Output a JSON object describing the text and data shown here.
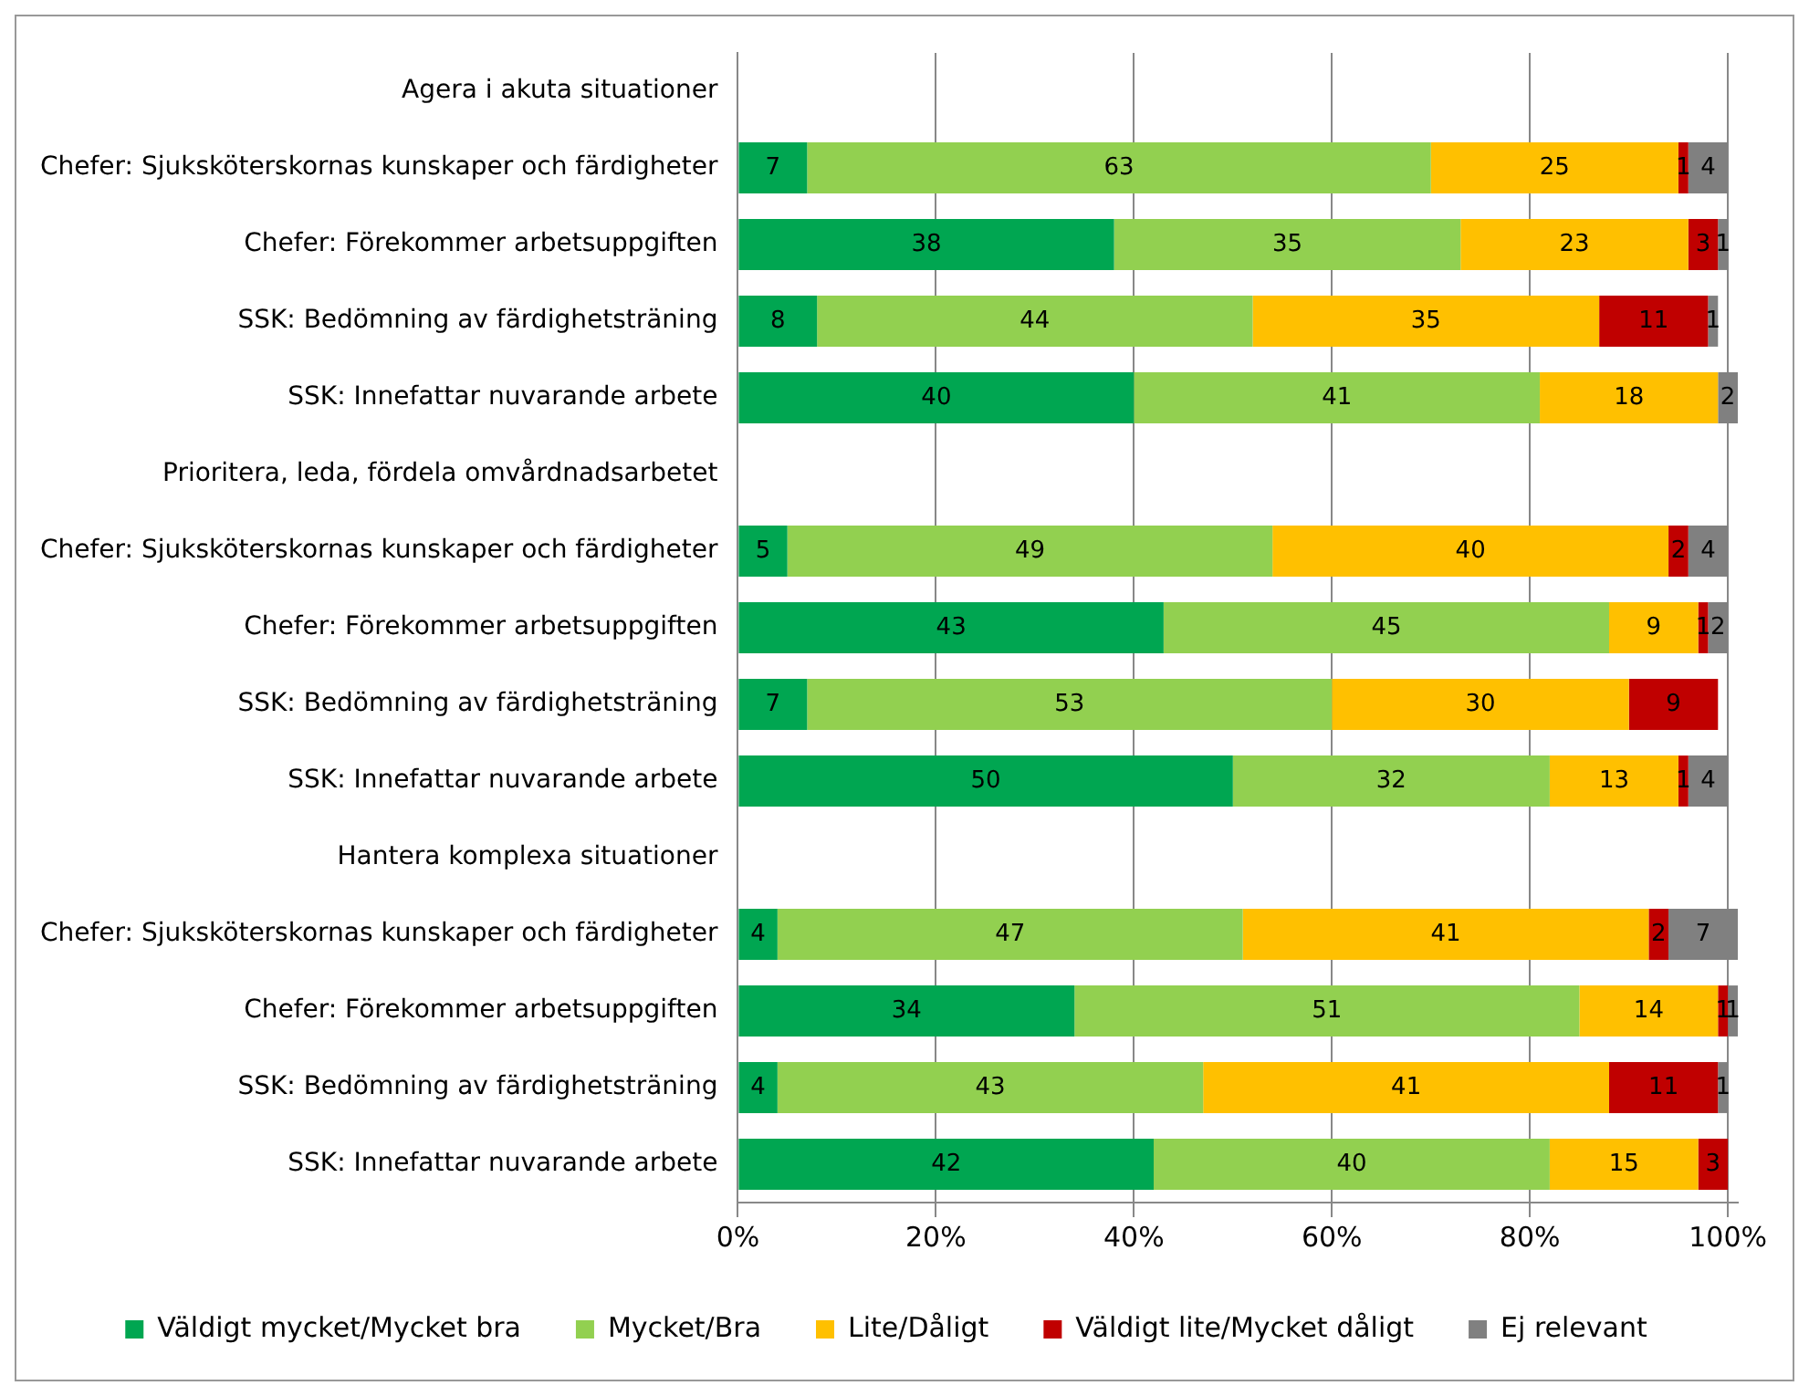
{
  "chart_data": {
    "type": "bar",
    "orientation": "horizontal",
    "stacked": true,
    "data_labels": true,
    "grid": "x",
    "legend": "bottom",
    "categories": [
      "Agera i akuta situationer",
      "Chefer: Sjuksköterskornas kunskaper och färdigheter",
      "Chefer: Förekommer arbetsuppgiften",
      "SSK: Bedömning av färdighetsträning",
      "SSK: Innefattar nuvarande arbete",
      "Prioritera, leda, fördela omvårdnadsarbetet",
      "Chefer: Sjuksköterskornas kunskaper och färdigheter",
      "Chefer: Förekommer arbetsuppgiften",
      "SSK: Bedömning av färdighetsträning",
      "SSK: Innefattar nuvarande arbete",
      "Hantera komplexa situationer",
      "Chefer: Sjuksköterskornas kunskaper och färdigheter",
      "Chefer: Förekommer arbetsuppgiften",
      "SSK: Bedömning av färdighetsträning",
      "SSK: Innefattar nuvarande arbete"
    ],
    "series": [
      {
        "name": "Väldigt mycket/Mycket bra",
        "color": "#00a651",
        "values": [
          null,
          7,
          38,
          8,
          40,
          null,
          5,
          43,
          7,
          50,
          null,
          4,
          34,
          4,
          42
        ]
      },
      {
        "name": "Mycket/Bra",
        "color": "#92d050",
        "values": [
          null,
          63,
          35,
          44,
          41,
          null,
          49,
          45,
          53,
          32,
          null,
          47,
          51,
          43,
          40
        ]
      },
      {
        "name": "Lite/Dåligt",
        "color": "#ffc000",
        "values": [
          null,
          25,
          23,
          35,
          18,
          null,
          40,
          9,
          30,
          13,
          null,
          41,
          14,
          41,
          15
        ]
      },
      {
        "name": "Väldigt lite/Mycket dåligt",
        "color": "#c00000",
        "values": [
          null,
          1,
          3,
          11,
          null,
          null,
          2,
          1,
          9,
          1,
          null,
          2,
          1,
          11,
          3
        ]
      },
      {
        "name": "Ej relevant",
        "color": "#808080",
        "values": [
          null,
          4,
          1,
          1,
          2,
          null,
          4,
          2,
          null,
          4,
          null,
          7,
          1,
          1,
          null
        ]
      }
    ],
    "xlim": [
      0,
      101
    ],
    "xticks": [
      {
        "value": 0,
        "label": "0%"
      },
      {
        "value": 20,
        "label": "20%"
      },
      {
        "value": 40,
        "label": "40%"
      },
      {
        "value": 60,
        "label": "60%"
      },
      {
        "value": 80,
        "label": "80%"
      },
      {
        "value": 100,
        "label": "100%"
      }
    ]
  }
}
